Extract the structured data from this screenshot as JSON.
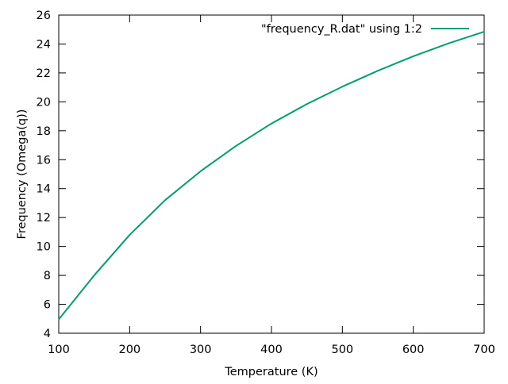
{
  "chart_data": {
    "type": "line",
    "title": "",
    "xlabel": "Temperature (K)",
    "ylabel": "Frequency (Omega(q))",
    "xlim": [
      100,
      700
    ],
    "ylim": [
      4,
      26
    ],
    "xticks": [
      100,
      200,
      300,
      400,
      500,
      600,
      700
    ],
    "yticks": [
      4,
      6,
      8,
      10,
      12,
      14,
      16,
      18,
      20,
      22,
      24,
      26
    ],
    "grid": false,
    "legend_position": "top-right",
    "series": [
      {
        "name": "\"frequency_R.dat\"  using 1:2",
        "color": "#009e73",
        "x": [
          100,
          150,
          200,
          250,
          300,
          350,
          400,
          450,
          500,
          550,
          600,
          650,
          700
        ],
        "y": [
          4.95,
          8.0,
          10.8,
          13.2,
          15.2,
          16.95,
          18.5,
          19.85,
          21.05,
          22.15,
          23.15,
          24.05,
          24.85
        ]
      }
    ]
  }
}
